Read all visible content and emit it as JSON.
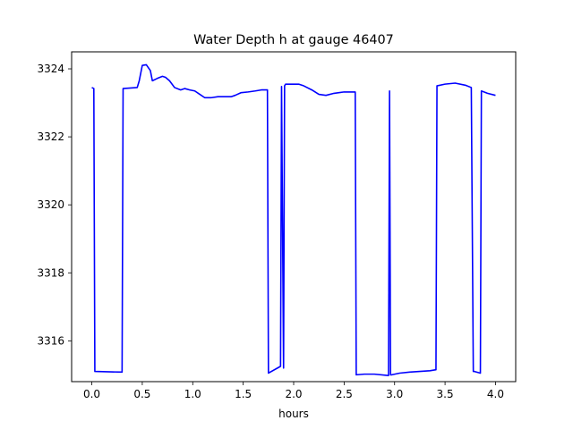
{
  "chart_data": {
    "type": "line",
    "title": "Water Depth h at gauge 46407",
    "xlabel": "hours",
    "ylabel": "",
    "xlim": [
      -0.2,
      4.2
    ],
    "ylim": [
      3314.8,
      3324.5
    ],
    "xticks": [
      0.0,
      0.5,
      1.0,
      1.5,
      2.0,
      2.5,
      3.0,
      3.5,
      4.0
    ],
    "xtick_labels": [
      "0.0",
      "0.5",
      "1.0",
      "1.5",
      "2.0",
      "2.5",
      "3.0",
      "3.5",
      "4.0"
    ],
    "yticks": [
      3316,
      3318,
      3320,
      3322,
      3324
    ],
    "ytick_labels": [
      "3316",
      "3318",
      "3320",
      "3322",
      "3324"
    ],
    "grid": false,
    "color": "#0000ff",
    "series": [
      {
        "name": "",
        "x": [
          0.0,
          0.02,
          0.03,
          0.3,
          0.31,
          0.45,
          0.47,
          0.5,
          0.54,
          0.58,
          0.6,
          0.65,
          0.7,
          0.73,
          0.77,
          0.82,
          0.88,
          0.92,
          0.97,
          1.02,
          1.07,
          1.12,
          1.18,
          1.25,
          1.32,
          1.38,
          1.42,
          1.48,
          1.55,
          1.62,
          1.68,
          1.74,
          1.75,
          1.87,
          1.88,
          1.9,
          1.91,
          1.92,
          1.98,
          2.05,
          2.1,
          2.18,
          2.25,
          2.32,
          2.4,
          2.5,
          2.61,
          2.62,
          2.7,
          2.8,
          2.94,
          2.95,
          2.96,
          2.97,
          3.05,
          3.15,
          3.25,
          3.35,
          3.41,
          3.42,
          3.5,
          3.6,
          3.7,
          3.76,
          3.78,
          3.79,
          3.85,
          3.86,
          3.92,
          4.0
        ],
        "y": [
          3323.45,
          3323.42,
          3315.1,
          3315.08,
          3323.42,
          3323.45,
          3323.65,
          3324.1,
          3324.12,
          3323.95,
          3323.65,
          3323.72,
          3323.78,
          3323.75,
          3323.65,
          3323.45,
          3323.38,
          3323.42,
          3323.38,
          3323.35,
          3323.25,
          3323.15,
          3323.15,
          3323.18,
          3323.18,
          3323.18,
          3323.22,
          3323.3,
          3323.32,
          3323.35,
          3323.38,
          3323.38,
          3315.05,
          3315.25,
          3323.48,
          3315.2,
          3323.5,
          3323.55,
          3323.55,
          3323.55,
          3323.5,
          3323.38,
          3323.25,
          3323.22,
          3323.28,
          3323.32,
          3323.32,
          3315.0,
          3315.02,
          3315.02,
          3314.98,
          3323.35,
          3315.0,
          3315.0,
          3315.05,
          3315.08,
          3315.1,
          3315.12,
          3315.15,
          3323.5,
          3323.55,
          3323.58,
          3323.52,
          3323.45,
          3315.1,
          3315.1,
          3315.05,
          3323.35,
          3323.28,
          3323.22
        ]
      }
    ]
  }
}
